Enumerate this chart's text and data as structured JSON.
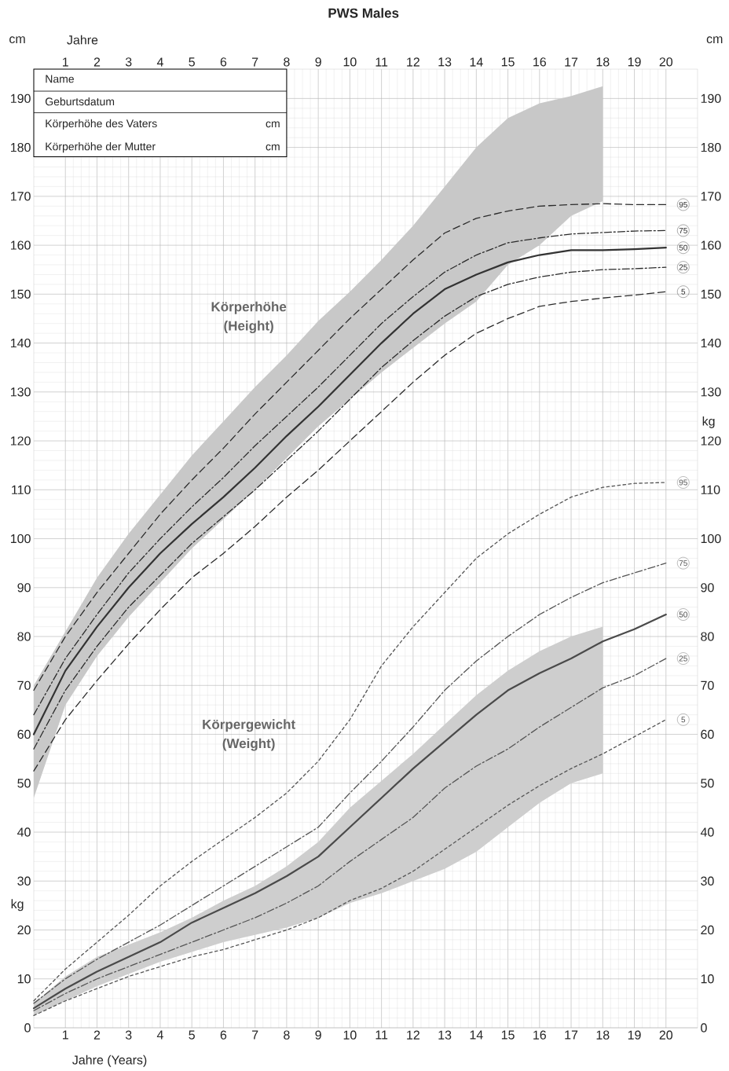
{
  "chart_data": {
    "type": "line",
    "title": "PWS Males",
    "xlabel": "Jahre (Years)",
    "x2label": "Jahre",
    "ylabel": "cm",
    "y2label": "cm",
    "x": [
      0,
      1,
      2,
      3,
      4,
      5,
      6,
      7,
      8,
      9,
      10,
      11,
      12,
      13,
      14,
      15,
      16,
      17,
      18,
      19,
      20
    ],
    "xlim": [
      0,
      21
    ],
    "xticks": [
      1,
      2,
      3,
      4,
      5,
      6,
      7,
      8,
      9,
      10,
      11,
      12,
      13,
      14,
      15,
      16,
      17,
      18,
      19,
      20
    ],
    "x2lim": [
      0,
      21
    ],
    "x2ticks": [
      1,
      2,
      3,
      4,
      5,
      6,
      7,
      8,
      9,
      10,
      11,
      12,
      13,
      14,
      15,
      16,
      17,
      18,
      19,
      20
    ],
    "ylim": [
      0,
      196
    ],
    "yticks": [
      0,
      10,
      20,
      30,
      40,
      50,
      60,
      70,
      80,
      90,
      100,
      110,
      120,
      130,
      140,
      150,
      160,
      170,
      180,
      190
    ],
    "y2lim": [
      0,
      196
    ],
    "y2ticks": [
      0,
      10,
      20,
      30,
      40,
      50,
      60,
      70,
      80,
      90,
      100,
      110,
      120,
      130,
      140,
      150,
      160,
      170,
      180,
      190
    ],
    "grid": true,
    "series": [
      {
        "name": "95",
        "color": "#2b2b2b",
        "line_style": "dashed",
        "values": [
          69,
          80,
          89,
          97,
          105,
          112,
          118.5,
          125.5,
          132,
          138.5,
          145,
          151,
          157,
          162.5,
          165.5,
          167,
          168,
          168.3,
          168.5,
          168.3,
          168.3
        ]
      },
      {
        "name": "75",
        "color": "#2b2b2b",
        "line_style": "dashdot",
        "values": [
          64,
          75.5,
          84.5,
          93,
          100,
          106.5,
          112.5,
          119,
          125,
          131,
          137.5,
          144,
          149.5,
          154.5,
          158,
          160.5,
          161.5,
          162.3,
          162.6,
          162.9,
          163
        ]
      },
      {
        "name": "50",
        "color": "#333333",
        "line_style": "solid",
        "values": [
          60,
          73,
          82,
          90,
          97,
          103,
          108.5,
          114.5,
          121,
          127,
          133.5,
          140,
          146,
          151,
          154,
          156.5,
          158,
          159,
          159,
          159.2,
          159.5
        ],
        "upper": [
          70,
          81,
          92,
          101,
          109,
          117,
          124,
          131,
          137.5,
          144.5,
          150.5,
          157,
          164,
          172,
          180,
          186,
          189,
          190.5,
          192.5,
          null,
          null
        ],
        "lower": [
          47,
          66,
          76,
          84,
          91,
          98,
          104,
          110,
          116.5,
          123,
          128.5,
          134,
          139,
          144,
          148.5,
          156,
          160,
          166,
          169,
          null,
          null
        ]
      },
      {
        "name": "25",
        "color": "#2b2b2b",
        "line_style": "dashdot",
        "values": [
          57,
          69,
          78,
          86,
          92.5,
          99,
          104.5,
          110,
          116,
          122,
          128.5,
          135,
          140.5,
          145.5,
          149.5,
          152,
          153.5,
          154.5,
          155,
          155.2,
          155.5
        ]
      },
      {
        "name": "5",
        "color": "#2b2b2b",
        "line_style": "dashed",
        "values": [
          52.5,
          63,
          71,
          78.5,
          85.5,
          92,
          97,
          102.5,
          108.5,
          114,
          120,
          126,
          132,
          137.5,
          142,
          145,
          147.5,
          148.5,
          149.2,
          149.8,
          150.5
        ]
      },
      {
        "name": "95",
        "color": "#555555",
        "line_style": "dotted",
        "values": [
          5.5,
          12,
          17.5,
          23,
          29,
          34,
          38.5,
          43,
          48,
          54.5,
          63,
          74,
          82,
          89,
          96,
          101,
          105,
          108.5,
          110.5,
          111.3,
          111.5
        ]
      },
      {
        "name": "75",
        "color": "#555555",
        "line_style": "dashdot",
        "values": [
          5,
          10,
          14,
          17.5,
          21,
          25,
          29,
          33,
          37,
          41,
          48,
          54.5,
          61.5,
          69,
          75,
          80,
          84.5,
          88,
          91,
          93,
          95
        ]
      },
      {
        "name": "50",
        "color": "#4a4a4a",
        "line_style": "solid",
        "values": [
          4,
          8,
          11.5,
          14.5,
          17.5,
          21.5,
          24.5,
          27.5,
          31,
          35,
          41,
          47,
          53,
          58.5,
          64,
          69,
          72.5,
          75.5,
          79,
          81.5,
          84.5
        ],
        "upper": [
          5,
          10.5,
          14.5,
          17,
          19.5,
          22.5,
          26,
          29,
          33,
          38,
          45,
          50.5,
          56,
          62,
          68,
          73,
          77,
          80,
          82,
          null,
          null
        ],
        "lower": [
          2.5,
          5.5,
          8.5,
          11,
          13.5,
          15.5,
          17.5,
          19,
          20.5,
          22.5,
          25.5,
          27.5,
          30,
          32.5,
          36,
          41,
          46,
          50,
          52,
          null,
          null
        ]
      },
      {
        "name": "25",
        "color": "#555555",
        "line_style": "dashdot",
        "values": [
          3.5,
          7,
          10,
          12.5,
          15,
          17.5,
          20,
          22.5,
          25.5,
          29,
          34,
          38.5,
          43,
          49,
          53.5,
          57,
          61.5,
          65.5,
          69.5,
          72,
          75.5
        ]
      },
      {
        "name": "5",
        "color": "#555555",
        "line_style": "dotted",
        "values": [
          2.5,
          5.5,
          8,
          10.5,
          12.5,
          14.5,
          16,
          18,
          20,
          22.5,
          26,
          28.5,
          32,
          36.5,
          41,
          45.5,
          49.5,
          53,
          56,
          59.5,
          63
        ]
      }
    ],
    "annotations": [
      "Name",
      "Geburtsdatum",
      "Körperhöhe des Vaters",
      "cm",
      "Körperhöhe der Mutter",
      "cm",
      "Körperhöhe",
      "(Height)",
      "Körpergewicht",
      "(Weight)",
      "kg",
      "kg"
    ]
  }
}
